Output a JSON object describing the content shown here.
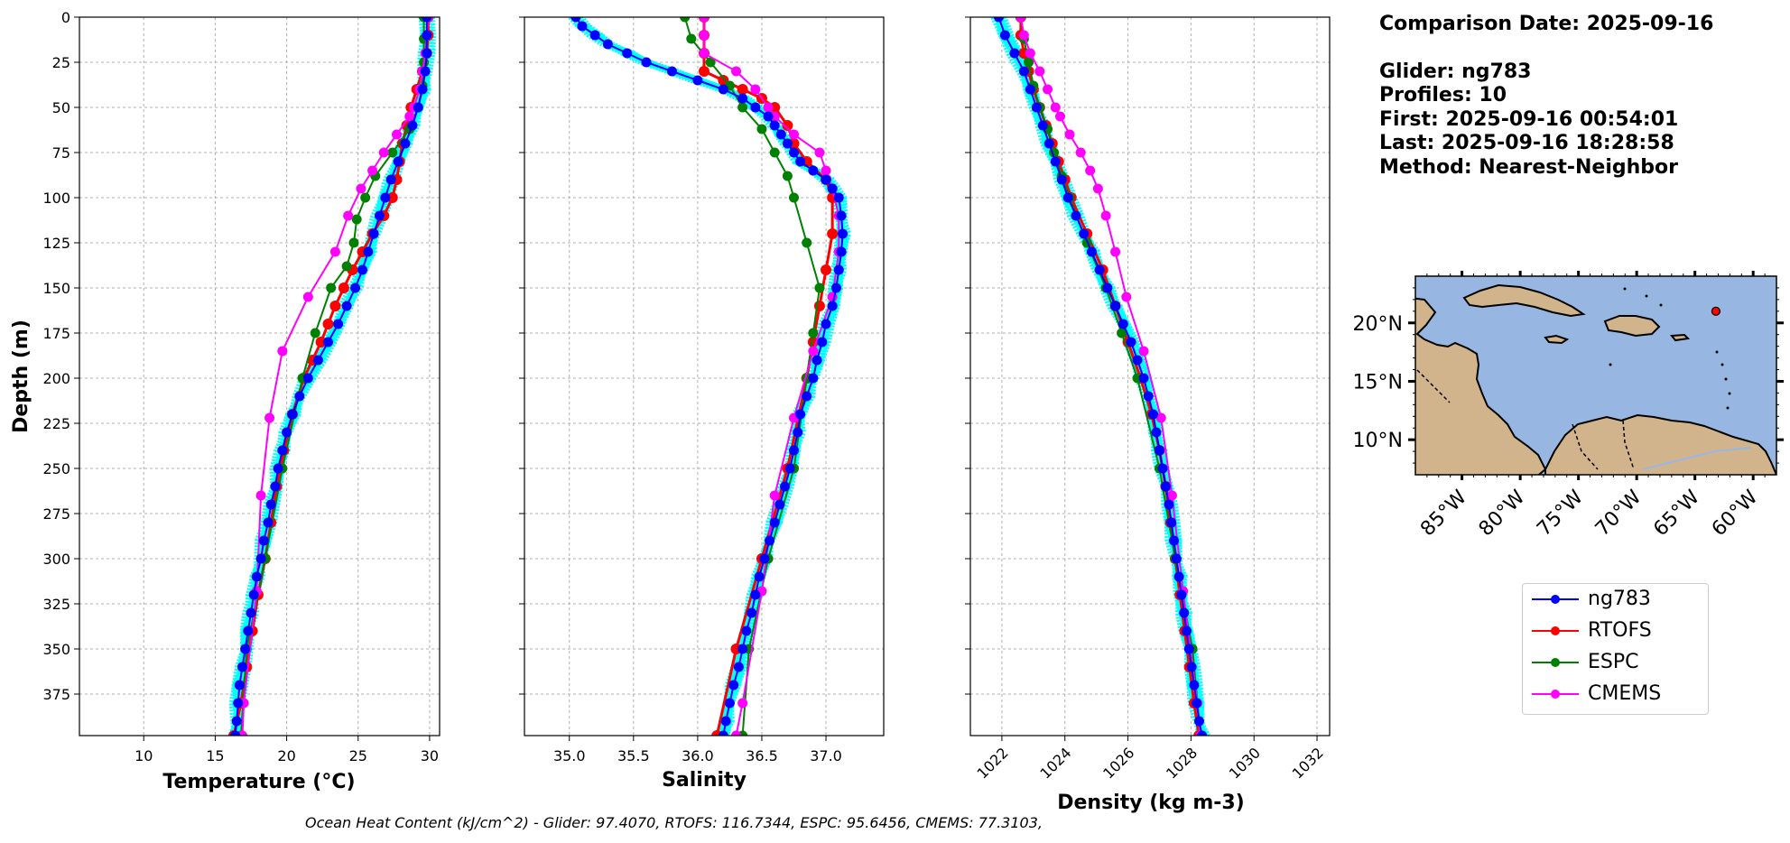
{
  "colors": {
    "glider": "#0000ff",
    "rtofs": "#ff0000",
    "espc": "#008000",
    "cmems": "#ff00ff",
    "cyan": "#00ffff",
    "ocean": "#97b6e1",
    "land": "#d2b48c"
  },
  "info": {
    "comparison_date": "Comparison Date: 2025-09-16",
    "glider": "Glider: ng783",
    "profiles": "Profiles: 10",
    "first": "First: 2025-09-16 00:54:01",
    "last": "Last: 2025-09-16 18:28:58",
    "method": "Method: Nearest-Neighbor"
  },
  "legend": [
    {
      "name": "ng783",
      "color": "#0000ff"
    },
    {
      "name": "RTOFS",
      "color": "#ff0000"
    },
    {
      "name": "ESPC",
      "color": "#008000"
    },
    {
      "name": "CMEMS",
      "color": "#ff00ff"
    }
  ],
  "footer": "Ocean Heat Content (kJ/cm^2) - Glider: 97.4070,  RTOFS: 116.7344,  ESPC: 95.6456,  CMEMS: 77.3103,",
  "map": {
    "lat_ticks": [
      "20°N",
      "15°N",
      "10°N"
    ],
    "lon_ticks": [
      "85°W",
      "80°W",
      "75°W",
      "70°W",
      "65°W",
      "60°W"
    ],
    "lon_range": [
      -89,
      -58
    ],
    "lat_range": [
      7,
      24
    ],
    "glider_position": {
      "lon": -63.2,
      "lat": 21.0
    }
  },
  "chart_data": [
    {
      "type": "line",
      "xlabel": "Temperature (°C)",
      "ylabel": "Depth (m)",
      "xlim": [
        5.5,
        30.7
      ],
      "ylim": [
        0,
        398
      ],
      "y_inverted": true,
      "grid": true,
      "xticks": [
        10,
        15,
        20,
        25,
        30
      ],
      "yticks": [
        0,
        25,
        50,
        75,
        100,
        125,
        150,
        175,
        200,
        225,
        250,
        275,
        300,
        325,
        350,
        375
      ],
      "series": [
        {
          "name": "ng783",
          "color": "#0000ff",
          "depth": [
            0,
            10,
            20,
            30,
            40,
            50,
            60,
            70,
            80,
            90,
            100,
            110,
            120,
            130,
            140,
            150,
            160,
            170,
            180,
            190,
            200,
            210,
            220,
            230,
            240,
            250,
            260,
            270,
            280,
            290,
            300,
            310,
            320,
            330,
            340,
            350,
            360,
            370,
            380,
            390,
            398
          ],
          "values": [
            29.8,
            29.8,
            29.8,
            29.7,
            29.5,
            29.2,
            28.8,
            28.3,
            27.8,
            27.3,
            26.9,
            26.5,
            26.1,
            25.7,
            25.3,
            24.8,
            24.2,
            23.6,
            22.9,
            22.2,
            21.5,
            20.9,
            20.4,
            20.0,
            19.7,
            19.4,
            19.2,
            18.9,
            18.7,
            18.4,
            18.2,
            17.9,
            17.7,
            17.5,
            17.3,
            17.1,
            16.9,
            16.7,
            16.6,
            16.5,
            16.4
          ]
        },
        {
          "name": "RTOFS",
          "color": "#ff0000",
          "depth": [
            0,
            10,
            20,
            30,
            40,
            50,
            60,
            70,
            80,
            90,
            100,
            110,
            120,
            130,
            140,
            150,
            160,
            170,
            180,
            190,
            200,
            220,
            240,
            260,
            280,
            300,
            320,
            340,
            360,
            380,
            398
          ],
          "values": [
            29.9,
            29.9,
            29.8,
            29.5,
            29.1,
            28.7,
            28.4,
            28.1,
            27.9,
            27.7,
            27.4,
            26.8,
            26.0,
            25.3,
            24.6,
            24.0,
            23.4,
            22.9,
            22.4,
            21.8,
            21.2,
            20.4,
            19.8,
            19.3,
            18.9,
            18.5,
            18.0,
            17.6,
            17.2,
            16.8,
            16.3
          ]
        },
        {
          "name": "ESPC",
          "color": "#008000",
          "depth": [
            0,
            12,
            25,
            38,
            50,
            62,
            75,
            88,
            100,
            112,
            125,
            138,
            150,
            175,
            200,
            250,
            300,
            350,
            398
          ],
          "values": [
            29.6,
            29.6,
            29.6,
            29.5,
            29.2,
            28.6,
            27.4,
            26.2,
            25.5,
            24.9,
            24.7,
            24.2,
            23.1,
            22.0,
            21.1,
            19.7,
            18.5,
            17.2,
            16.8
          ]
        },
        {
          "name": "CMEMS",
          "color": "#ff00ff",
          "depth": [
            0,
            10,
            20,
            30,
            40,
            50,
            55,
            65,
            75,
            85,
            95,
            110,
            130,
            155,
            185,
            222,
            265,
            318,
            380,
            398
          ],
          "values": [
            29.9,
            29.8,
            29.7,
            29.5,
            29.3,
            28.9,
            28.6,
            27.7,
            26.8,
            26.0,
            25.2,
            24.3,
            23.4,
            21.5,
            19.7,
            18.8,
            18.2,
            17.9,
            17.0,
            16.9
          ]
        }
      ]
    },
    {
      "type": "line",
      "xlabel": "Salinity",
      "ylabel": "",
      "xlim": [
        34.65,
        37.45
      ],
      "ylim": [
        0,
        398
      ],
      "y_inverted": true,
      "grid": true,
      "xticks": [
        35.0,
        35.5,
        36.0,
        36.5,
        37.0
      ],
      "yticks": [
        0,
        25,
        50,
        75,
        100,
        125,
        150,
        175,
        200,
        225,
        250,
        275,
        300,
        325,
        350,
        375
      ],
      "series": [
        {
          "name": "ng783",
          "color": "#0000ff",
          "depth": [
            0,
            5,
            10,
            15,
            20,
            25,
            30,
            35,
            40,
            45,
            50,
            55,
            60,
            65,
            70,
            75,
            80,
            85,
            90,
            95,
            100,
            110,
            120,
            130,
            140,
            150,
            160,
            170,
            180,
            190,
            200,
            210,
            220,
            230,
            240,
            250,
            260,
            270,
            280,
            290,
            300,
            310,
            320,
            330,
            340,
            350,
            360,
            370,
            380,
            390,
            398
          ],
          "values": [
            35.05,
            35.1,
            35.2,
            35.3,
            35.45,
            35.6,
            35.8,
            36.0,
            36.2,
            36.35,
            36.45,
            36.55,
            36.6,
            36.65,
            36.7,
            36.75,
            36.8,
            36.9,
            37.0,
            37.05,
            37.1,
            37.12,
            37.13,
            37.12,
            37.1,
            37.08,
            37.05,
            37.0,
            36.97,
            36.93,
            36.9,
            36.85,
            36.8,
            36.78,
            36.75,
            36.72,
            36.68,
            36.64,
            36.6,
            36.56,
            36.52,
            36.48,
            36.45,
            36.42,
            36.38,
            36.35,
            36.32,
            36.28,
            36.25,
            36.22,
            36.2
          ]
        },
        {
          "name": "RTOFS",
          "color": "#ff0000",
          "depth": [
            0,
            10,
            20,
            30,
            35,
            40,
            45,
            50,
            60,
            70,
            80,
            90,
            100,
            120,
            140,
            160,
            180,
            200,
            250,
            300,
            350,
            398
          ],
          "values": [
            36.05,
            36.05,
            36.05,
            36.05,
            36.2,
            36.35,
            36.5,
            36.6,
            36.7,
            36.75,
            36.85,
            37.0,
            37.05,
            37.05,
            37.0,
            36.95,
            36.9,
            36.85,
            36.7,
            36.5,
            36.3,
            36.15
          ]
        },
        {
          "name": "ESPC",
          "color": "#008000",
          "depth": [
            0,
            12,
            25,
            38,
            50,
            62,
            75,
            88,
            100,
            125,
            150,
            175,
            200,
            250,
            300,
            350,
            398
          ],
          "values": [
            35.9,
            35.95,
            36.1,
            36.25,
            36.35,
            36.5,
            36.6,
            36.7,
            36.75,
            36.85,
            36.95,
            36.9,
            36.85,
            36.75,
            36.55,
            36.4,
            36.35
          ]
        },
        {
          "name": "CMEMS",
          "color": "#ff00ff",
          "depth": [
            0,
            10,
            20,
            30,
            40,
            50,
            55,
            65,
            75,
            85,
            95,
            110,
            130,
            155,
            185,
            222,
            265,
            318,
            380,
            398
          ],
          "values": [
            36.05,
            36.05,
            36.05,
            36.3,
            36.45,
            36.55,
            36.6,
            36.75,
            36.95,
            37.0,
            37.05,
            37.1,
            37.1,
            37.05,
            36.9,
            36.75,
            36.6,
            36.5,
            36.35,
            36.3
          ]
        }
      ]
    },
    {
      "type": "line",
      "xlabel": "Density (kg m-3)",
      "ylabel": "",
      "xlim": [
        1021.0,
        1032.4
      ],
      "ylim": [
        0,
        398
      ],
      "y_inverted": true,
      "grid": true,
      "xticks": [
        1022,
        1024,
        1026,
        1028,
        1030,
        1032
      ],
      "yticks": [
        0,
        25,
        50,
        75,
        100,
        125,
        150,
        175,
        200,
        225,
        250,
        275,
        300,
        325,
        350,
        375
      ],
      "series": [
        {
          "name": "ng783",
          "color": "#0000ff",
          "depth": [
            0,
            10,
            20,
            30,
            40,
            50,
            60,
            70,
            80,
            90,
            100,
            110,
            120,
            130,
            140,
            150,
            160,
            170,
            180,
            190,
            200,
            210,
            220,
            230,
            240,
            250,
            260,
            270,
            280,
            290,
            300,
            310,
            320,
            330,
            340,
            350,
            360,
            370,
            380,
            390,
            398
          ],
          "values": [
            1021.9,
            1022.1,
            1022.4,
            1022.7,
            1022.9,
            1023.1,
            1023.3,
            1023.5,
            1023.7,
            1023.9,
            1024.1,
            1024.35,
            1024.6,
            1024.85,
            1025.1,
            1025.35,
            1025.6,
            1025.85,
            1026.1,
            1026.3,
            1026.5,
            1026.65,
            1026.8,
            1026.9,
            1027.0,
            1027.1,
            1027.2,
            1027.3,
            1027.38,
            1027.46,
            1027.54,
            1027.62,
            1027.7,
            1027.78,
            1027.86,
            1027.94,
            1028.02,
            1028.1,
            1028.18,
            1028.26,
            1028.35
          ]
        },
        {
          "name": "RTOFS",
          "color": "#ff0000",
          "depth": [
            0,
            10,
            20,
            30,
            40,
            50,
            60,
            70,
            80,
            90,
            100,
            120,
            140,
            160,
            180,
            200,
            220,
            240,
            260,
            280,
            300,
            320,
            340,
            360,
            380,
            398
          ],
          "values": [
            1022.6,
            1022.6,
            1022.7,
            1022.85,
            1023.0,
            1023.2,
            1023.4,
            1023.6,
            1023.8,
            1024.0,
            1024.2,
            1024.7,
            1025.2,
            1025.6,
            1026.0,
            1026.4,
            1026.75,
            1027.0,
            1027.2,
            1027.35,
            1027.5,
            1027.65,
            1027.8,
            1027.95,
            1028.1,
            1028.25
          ]
        },
        {
          "name": "ESPC",
          "color": "#008000",
          "depth": [
            0,
            12,
            25,
            38,
            50,
            62,
            75,
            88,
            100,
            125,
            150,
            175,
            200,
            250,
            300,
            350,
            398
          ],
          "values": [
            1022.6,
            1022.7,
            1022.85,
            1023.0,
            1023.2,
            1023.45,
            1023.65,
            1023.9,
            1024.15,
            1024.7,
            1025.3,
            1025.8,
            1026.3,
            1027.0,
            1027.5,
            1028.05,
            1028.3
          ]
        },
        {
          "name": "CMEMS",
          "color": "#ff00ff",
          "depth": [
            0,
            10,
            20,
            30,
            40,
            50,
            55,
            65,
            75,
            85,
            95,
            110,
            130,
            155,
            185,
            222,
            265,
            318,
            380,
            398
          ],
          "values": [
            1022.6,
            1022.7,
            1022.9,
            1023.2,
            1023.45,
            1023.7,
            1023.85,
            1024.15,
            1024.5,
            1024.8,
            1025.05,
            1025.3,
            1025.6,
            1025.95,
            1026.5,
            1027.05,
            1027.4,
            1027.75,
            1028.2,
            1028.3
          ]
        }
      ]
    }
  ]
}
